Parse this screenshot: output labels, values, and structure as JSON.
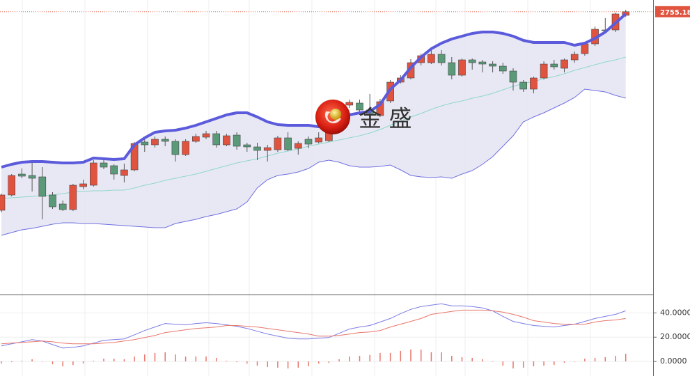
{
  "chart_data": [
    {
      "type": "candlestick",
      "watermark": "金 盛",
      "last_price": 2755.18,
      "last_price_color": "#e0533f",
      "up_color": "#e0533f",
      "down_color": "#5a9a78",
      "band_fill": "#e6e6f3",
      "ylim": [
        2350,
        2772
      ],
      "open": [
        2470,
        2492,
        2522,
        2520,
        2518,
        2492,
        2479,
        2471,
        2504,
        2506,
        2538,
        2534,
        2520,
        2528,
        2568,
        2564,
        2572,
        2569,
        2550,
        2569,
        2575,
        2580,
        2564,
        2578,
        2564,
        2561,
        2556,
        2557,
        2574,
        2559,
        2572,
        2568,
        2570,
        2597,
        2621,
        2624,
        2614,
        2606,
        2627,
        2654,
        2660,
        2682,
        2682,
        2694,
        2682,
        2664,
        2686,
        2683,
        2680,
        2677,
        2670,
        2654,
        2644,
        2660,
        2680,
        2674,
        2686,
        2695,
        2709,
        2729,
        2729,
        2750
      ],
      "high": [
        2494,
        2522,
        2530,
        2540,
        2532,
        2496,
        2484,
        2508,
        2514,
        2542,
        2544,
        2536,
        2537,
        2568,
        2574,
        2576,
        2576,
        2572,
        2572,
        2580,
        2584,
        2584,
        2580,
        2582,
        2567,
        2567,
        2564,
        2577,
        2582,
        2569,
        2576,
        2582,
        2607,
        2627,
        2629,
        2629,
        2637,
        2630,
        2657,
        2664,
        2687,
        2695,
        2702,
        2700,
        2690,
        2688,
        2688,
        2686,
        2684,
        2682,
        2674,
        2657,
        2662,
        2684,
        2686,
        2688,
        2698,
        2712,
        2734,
        2746,
        2754,
        2758
      ],
      "low": [
        2467,
        2490,
        2516,
        2497,
        2457,
        2472,
        2469,
        2469,
        2500,
        2504,
        2529,
        2514,
        2510,
        2526,
        2554,
        2560,
        2562,
        2540,
        2548,
        2567,
        2572,
        2560,
        2562,
        2557,
        2554,
        2542,
        2540,
        2554,
        2555,
        2550,
        2559,
        2566,
        2568,
        2594,
        2617,
        2607,
        2602,
        2604,
        2624,
        2652,
        2658,
        2678,
        2680,
        2678,
        2658,
        2662,
        2672,
        2668,
        2668,
        2666,
        2642,
        2640,
        2638,
        2658,
        2672,
        2668,
        2682,
        2692,
        2706,
        2724,
        2726,
        2748
      ],
      "close": [
        2492,
        2520,
        2519,
        2516,
        2490,
        2475,
        2471,
        2506,
        2508,
        2538,
        2532,
        2522,
        2528,
        2566,
        2564,
        2572,
        2569,
        2550,
        2569,
        2576,
        2580,
        2564,
        2577,
        2562,
        2561,
        2556,
        2560,
        2574,
        2557,
        2566,
        2565,
        2574,
        2597,
        2622,
        2625,
        2614,
        2609,
        2626,
        2654,
        2660,
        2682,
        2692,
        2694,
        2682,
        2664,
        2686,
        2682,
        2680,
        2677,
        2670,
        2654,
        2644,
        2660,
        2680,
        2676,
        2686,
        2694,
        2709,
        2730,
        2728,
        2752,
        2755.18
      ],
      "series": [
        {
          "color": "#5b5bdc",
          "line_width": 4,
          "values": [
            2532,
            2536,
            2539,
            2540,
            2540,
            2539,
            2538,
            2538,
            2539,
            2545,
            2544,
            2543,
            2544,
            2564,
            2574,
            2582,
            2584,
            2585,
            2588,
            2592,
            2597,
            2602,
            2607,
            2610,
            2610,
            2604,
            2597,
            2593,
            2592,
            2592,
            2592,
            2590,
            2592,
            2600,
            2607,
            2610,
            2612,
            2622,
            2644,
            2657,
            2675,
            2690,
            2702,
            2710,
            2716,
            2720,
            2724,
            2726,
            2726,
            2724,
            2720,
            2714,
            2711,
            2711,
            2711,
            2711,
            2707,
            2710,
            2717,
            2726,
            2739,
            2752
          ]
        },
        {
          "color": "#8fd8c8",
          "line_width": 1,
          "values": [
            2487,
            2488,
            2489,
            2490,
            2491,
            2492,
            2494,
            2496,
            2497,
            2498,
            2498,
            2499,
            2499,
            2502,
            2506,
            2509,
            2513,
            2516,
            2519,
            2522,
            2526,
            2530,
            2534,
            2538,
            2541,
            2544,
            2548,
            2552,
            2555,
            2558,
            2562,
            2565,
            2568,
            2571,
            2574,
            2577,
            2581,
            2586,
            2592,
            2598,
            2604,
            2609,
            2615,
            2620,
            2624,
            2627,
            2631,
            2634,
            2638,
            2643,
            2648,
            2652,
            2655,
            2659,
            2662,
            2666,
            2671,
            2675,
            2679,
            2683,
            2686,
            2690
          ]
        },
        {
          "color": "#6f6fe0",
          "line_width": 1,
          "values": [
            2434,
            2438,
            2442,
            2444,
            2447,
            2450,
            2452,
            2452,
            2451,
            2451,
            2450,
            2449,
            2448,
            2447,
            2446,
            2445,
            2445,
            2451,
            2454,
            2457,
            2461,
            2464,
            2468,
            2472,
            2482,
            2502,
            2514,
            2520,
            2522,
            2525,
            2530,
            2539,
            2542,
            2539,
            2534,
            2532,
            2532,
            2533,
            2535,
            2528,
            2520,
            2518,
            2517,
            2518,
            2516,
            2522,
            2527,
            2536,
            2547,
            2562,
            2577,
            2597,
            2604,
            2610,
            2617,
            2624,
            2632,
            2644,
            2642,
            2640,
            2635,
            2631
          ]
        }
      ]
    },
    {
      "type": "macd",
      "ylim": [
        -12,
        54
      ],
      "grid": true,
      "yticks": [
        {
          "value": 40,
          "label": "40.0000"
        },
        {
          "value": 20,
          "label": "20.0000"
        },
        {
          "value": 0,
          "label": "0.0000"
        }
      ],
      "series": [
        {
          "color": "#7b7be6",
          "values": [
            12.8,
            14.5,
            16.2,
            18.0,
            16.8,
            13.9,
            11.0,
            11.6,
            12.8,
            15.1,
            17.4,
            18.0,
            18.6,
            22.0,
            25.5,
            28.4,
            31.3,
            30.7,
            30.1,
            31.3,
            31.9,
            31.3,
            30.1,
            29.0,
            27.2,
            24.9,
            22.6,
            20.9,
            19.1,
            18.6,
            18.6,
            19.1,
            19.7,
            23.2,
            26.7,
            28.4,
            29.6,
            32.5,
            35.4,
            39.4,
            42.9,
            45.2,
            46.4,
            47.5,
            45.8,
            45.8,
            45.2,
            44.1,
            41.7,
            37.1,
            33.0,
            31.3,
            29.6,
            29.0,
            28.4,
            29.6,
            30.7,
            33.0,
            35.4,
            37.1,
            38.8,
            41.7
          ]
        },
        {
          "color": "#e8766a",
          "values": [
            14.5,
            15.1,
            15.7,
            16.2,
            16.8,
            16.2,
            15.1,
            14.5,
            14.5,
            14.5,
            15.1,
            15.7,
            16.8,
            18.0,
            19.7,
            21.4,
            23.8,
            24.9,
            26.1,
            27.2,
            27.8,
            28.4,
            29.6,
            29.6,
            29.0,
            28.4,
            27.2,
            26.1,
            24.9,
            23.8,
            22.6,
            20.9,
            20.9,
            21.4,
            22.6,
            23.8,
            24.3,
            25.5,
            28.4,
            30.7,
            33.0,
            35.4,
            38.8,
            40.0,
            41.2,
            42.3,
            42.3,
            42.3,
            41.7,
            40.6,
            38.8,
            36.5,
            33.6,
            32.5,
            31.3,
            30.7,
            30.7,
            30.7,
            32.5,
            33.6,
            34.2,
            35.4
          ]
        }
      ],
      "histogram": {
        "color": "#e8766a",
        "values": [
          -1.7,
          -0.6,
          0.5,
          1.8,
          0.0,
          -2.3,
          -4.1,
          -2.9,
          -1.7,
          0.6,
          2.3,
          2.3,
          1.8,
          4.0,
          5.8,
          7.0,
          7.5,
          5.8,
          4.0,
          4.1,
          4.1,
          2.9,
          0.5,
          -0.6,
          -1.8,
          -3.5,
          -4.6,
          -5.2,
          -5.8,
          -5.2,
          -4.0,
          -1.8,
          -1.2,
          1.8,
          4.1,
          4.6,
          5.3,
          7.0,
          7.0,
          8.7,
          9.9,
          9.8,
          7.6,
          7.5,
          4.6,
          3.5,
          2.9,
          1.8,
          0.0,
          -3.5,
          -5.8,
          -5.2,
          -4.0,
          -3.5,
          -2.9,
          -1.1,
          0.0,
          2.3,
          2.9,
          3.5,
          4.6,
          6.3
        ]
      }
    }
  ]
}
